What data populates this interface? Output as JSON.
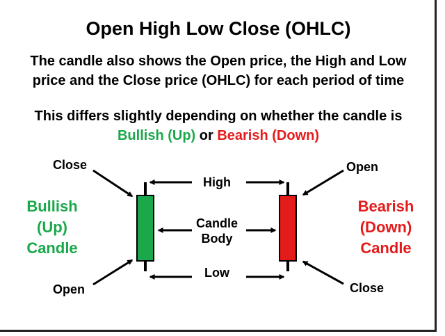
{
  "title": "Open High Low Close (OHLC)",
  "description": {
    "line1": "The candle also shows the Open price, the High and Low",
    "line2": "price and the Close price (OHLC) for each period of time"
  },
  "note": {
    "line1": "This differs slightly depending on whether the candle is",
    "bullish": "Bullish (Up)",
    "conjunction": " or ",
    "bearish": "Bearish (Down)"
  },
  "bullish_candle": {
    "title_lines": [
      "Bullish",
      "(Up)",
      "Candle"
    ],
    "top_label": "Close",
    "bottom_label": "Open",
    "color": "#1aa84a"
  },
  "bearish_candle": {
    "title_lines": [
      "Bearish",
      "(Down)",
      "Candle"
    ],
    "top_label": "Open",
    "bottom_label": "Close",
    "color": "#e41b1b"
  },
  "center_labels": {
    "high": "High",
    "body_line1": "Candle",
    "body_line2": "Body",
    "low": "Low"
  }
}
